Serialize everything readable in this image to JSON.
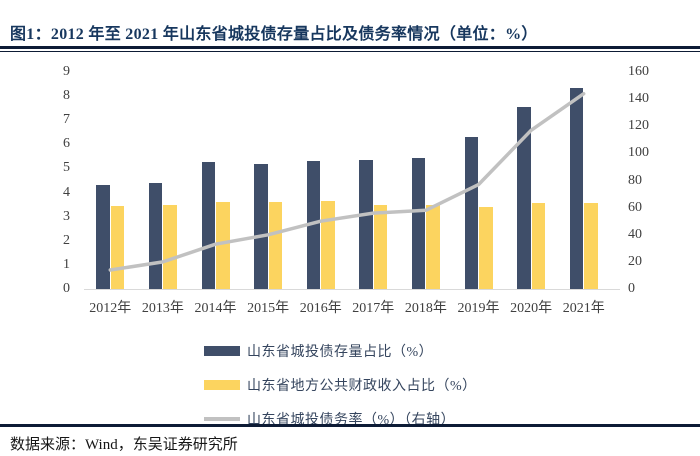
{
  "header": {
    "title": "图1：2012 年至 2021 年山东省城投债存量占比及债务率情况（单位：%）"
  },
  "footer": {
    "source": "数据来源：Wind，东吴证券研究所"
  },
  "colors": {
    "title_navy": "#17375e",
    "rule_dark": "#0d1b35",
    "bar_navy": "#3f4e69",
    "bar_yellow": "#fcd45f",
    "line_gray": "#c1c1c1",
    "axis_text": "#404040",
    "axis_line": "#d9d9d9",
    "legend_text": "#35455e"
  },
  "chart_data": {
    "type": "bar",
    "subtype": "grouped-bars-with-line",
    "categories": [
      "2012年",
      "2013年",
      "2014年",
      "2015年",
      "2016年",
      "2017年",
      "2018年",
      "2019年",
      "2020年",
      "2021年"
    ],
    "series": [
      {
        "name": "山东省城投债存量占比（%）",
        "kind": "bar",
        "axis": "left",
        "color": "#3f4e69",
        "values": [
          4.3,
          4.4,
          5.25,
          5.2,
          5.3,
          5.35,
          5.45,
          6.3,
          7.55,
          8.35
        ]
      },
      {
        "name": "山东省地方公共财政收入占比（%）",
        "kind": "bar",
        "axis": "left",
        "color": "#fcd45f",
        "values": [
          3.45,
          3.5,
          3.6,
          3.6,
          3.65,
          3.5,
          3.5,
          3.4,
          3.55,
          3.55
        ]
      },
      {
        "name": "山东省城投债务率（%）（右轴）",
        "kind": "line",
        "axis": "right",
        "color": "#c1c1c1",
        "values": [
          14,
          20,
          33,
          40,
          50,
          56,
          58,
          77,
          117,
          144
        ]
      }
    ],
    "left_axis": {
      "min": 0,
      "max": 9,
      "ticks": [
        0,
        1,
        2,
        3,
        4,
        5,
        6,
        7,
        8,
        9
      ]
    },
    "right_axis": {
      "min": 0,
      "max": 160,
      "ticks": [
        0,
        20,
        40,
        60,
        80,
        100,
        120,
        140,
        160
      ]
    },
    "grid": false,
    "legend_position": "bottom",
    "title": "2012 年至 2021 年山东省城投债存量占比及债务率情况",
    "xlabel": "",
    "ylabel_left": "",
    "ylabel_right": ""
  }
}
